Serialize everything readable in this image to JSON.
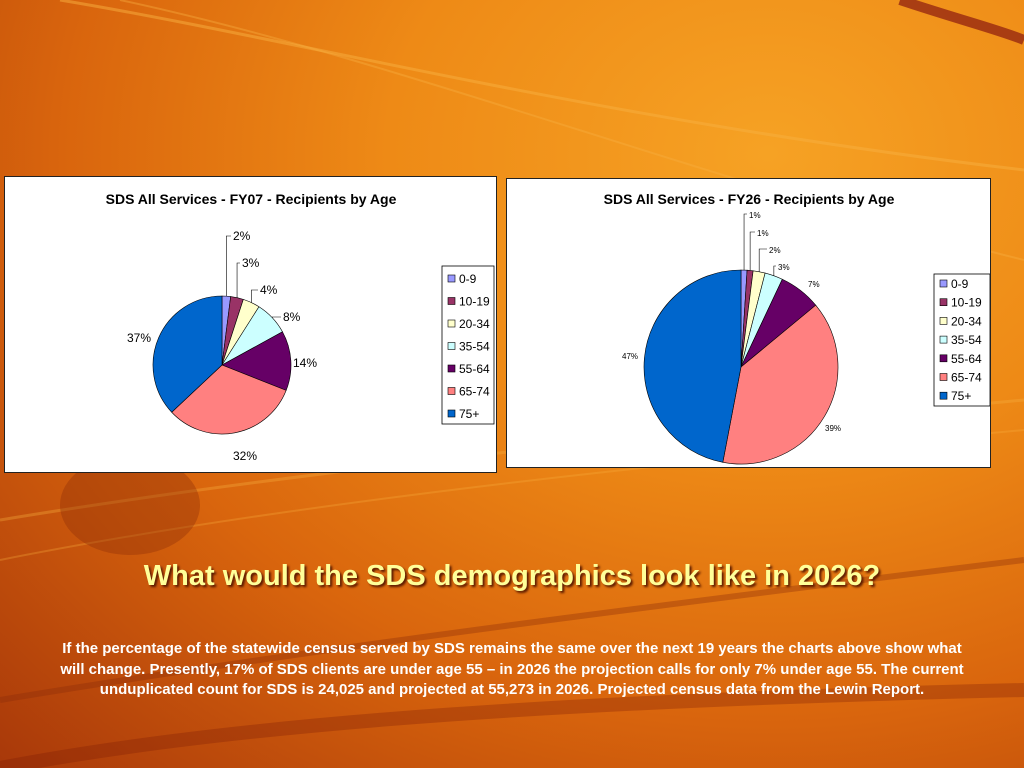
{
  "chart_data": [
    {
      "type": "pie",
      "title": "SDS All Services - FY07 - Recipients by Age",
      "categories": [
        "0-9",
        "10-19",
        "20-34",
        "35-54",
        "55-64",
        "65-74",
        "75+"
      ],
      "values": [
        2,
        3,
        4,
        8,
        14,
        32,
        37
      ],
      "value_labels": [
        "2%",
        "3%",
        "4%",
        "8%",
        "14%",
        "32%",
        "37%"
      ],
      "colors": [
        "#9999ff",
        "#993366",
        "#ffffcc",
        "#ccffff",
        "#660066",
        "#ff8080",
        "#0066cc"
      ],
      "legend": "right"
    },
    {
      "type": "pie",
      "title": "SDS All Services - FY26 - Recipients by Age",
      "categories": [
        "0-9",
        "10-19",
        "20-34",
        "35-54",
        "55-64",
        "65-74",
        "75+"
      ],
      "values": [
        1,
        1,
        2,
        3,
        7,
        39,
        47
      ],
      "value_labels": [
        "1%",
        "1%",
        "2%",
        "3%",
        "7%",
        "39%",
        "47%"
      ],
      "colors": [
        "#9999ff",
        "#993366",
        "#ffffcc",
        "#ccffff",
        "#660066",
        "#ff8080",
        "#0066cc"
      ],
      "legend": "right"
    }
  ],
  "slide": {
    "headline": "What would the SDS demographics look like in 2026?",
    "body": "If the percentage of the statewide census served by SDS remains the same over the next 19 years the charts above show what will change.  Presently, 17% of SDS clients are under age 55 – in 2026 the projection calls for only 7% under age 55.  The current unduplicated count for SDS is 24,025 and projected at 55,273 in 2026.  Projected census data from the Lewin Report."
  }
}
